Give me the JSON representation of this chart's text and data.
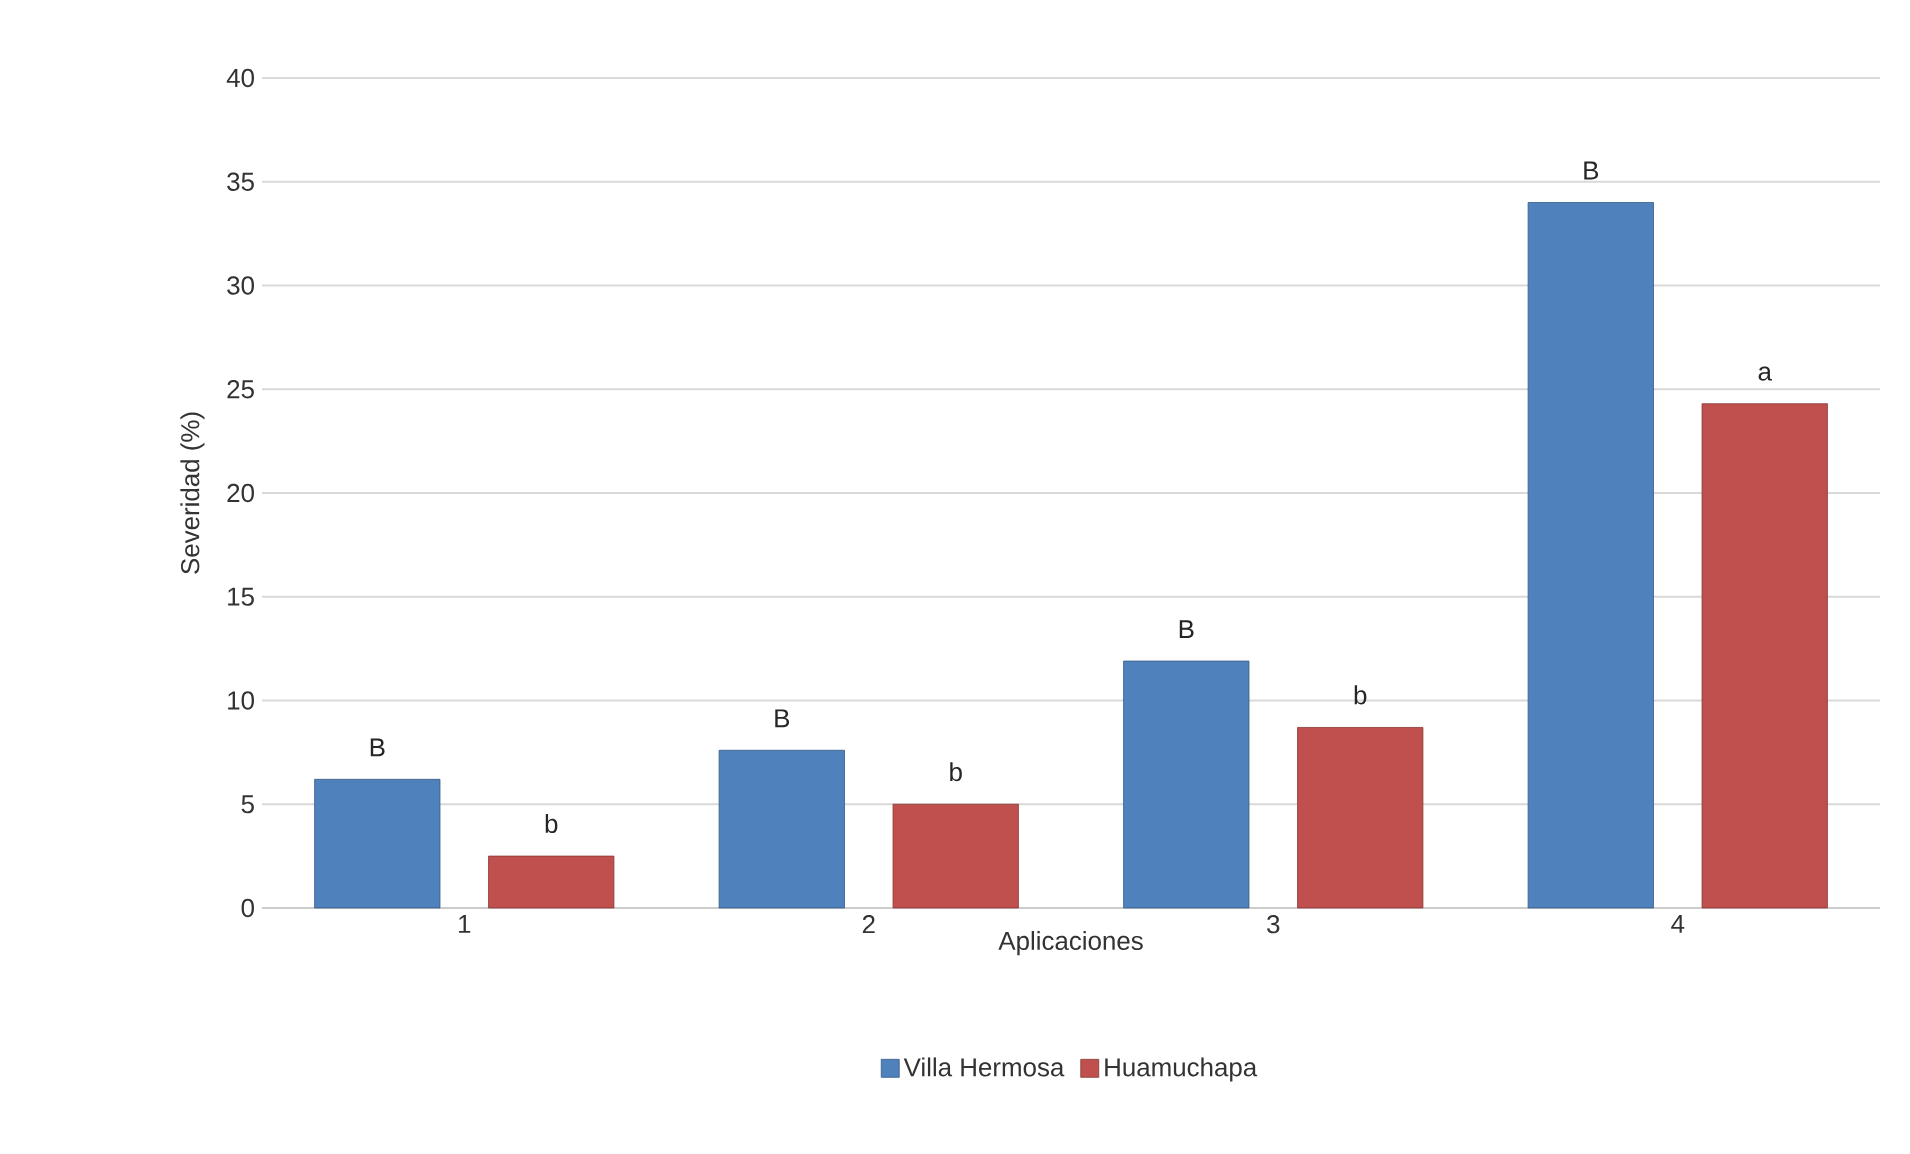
{
  "chart_data": {
    "type": "bar",
    "xlabel": "Aplicaciones",
    "ylabel": "Severidad (%)",
    "categories": [
      "1",
      "2",
      "3",
      "4"
    ],
    "series": [
      {
        "name": "Villa Hermosa",
        "color": "#4f81bd",
        "values": [
          6.2,
          7.6,
          11.9,
          34.0
        ],
        "value_labels": [
          "B",
          "B",
          "B",
          "B"
        ]
      },
      {
        "name": "Huamuchapa",
        "color": "#c0504d",
        "values": [
          2.5,
          5.0,
          8.7,
          24.3
        ],
        "value_labels": [
          "b",
          "b",
          "b",
          "a"
        ]
      }
    ],
    "ylim": [
      0,
      40
    ],
    "yticks": [
      0,
      5,
      10,
      15,
      20,
      25,
      30,
      35,
      40
    ],
    "grid": "y",
    "legend": "bottom"
  }
}
